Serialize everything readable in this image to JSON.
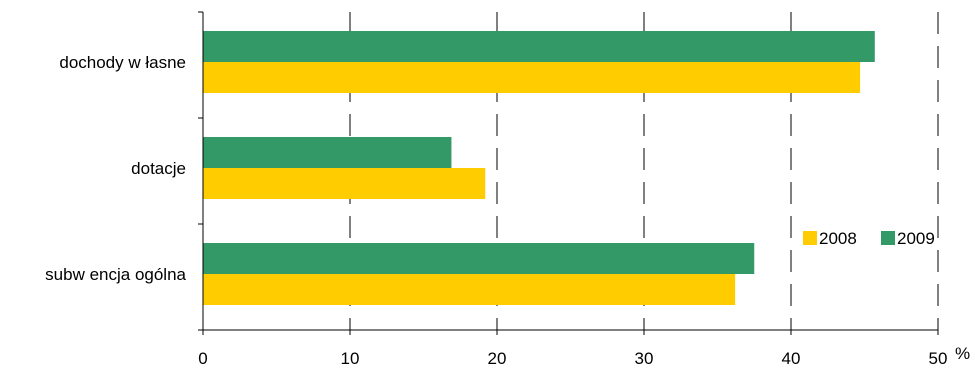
{
  "chart_data": {
    "type": "bar",
    "orientation": "horizontal",
    "categories": [
      "dochody w łasne",
      "dotacje",
      "subw encja ogólna"
    ],
    "series": [
      {
        "name": "2008",
        "color": "#FFCC00",
        "values": [
          44.7,
          19.2,
          36.2
        ]
      },
      {
        "name": "2009",
        "color": "#339966",
        "values": [
          45.7,
          16.9,
          37.5
        ]
      }
    ],
    "x_ticks": [
      "0",
      "10",
      "20",
      "30",
      "40",
      "50"
    ],
    "xlim": [
      0,
      50
    ],
    "x_unit": "%",
    "grid": "vertical dashed",
    "legend_position": "right"
  }
}
